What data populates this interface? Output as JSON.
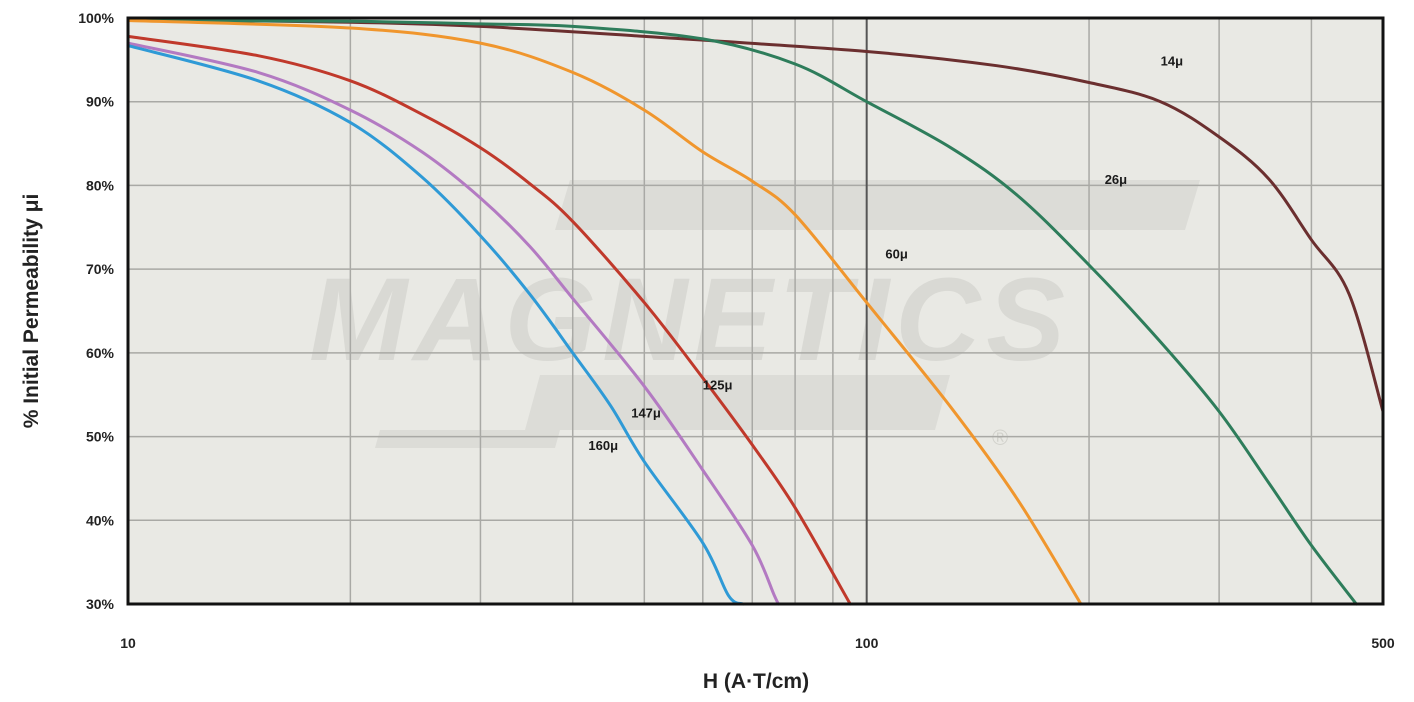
{
  "watermark": {
    "text": "MAGNETICS",
    "registered_mark": "®"
  },
  "chart_data": {
    "type": "line",
    "title": "",
    "xlabel": "H (A·T/cm)",
    "ylabel": "% Initial Permeability μi",
    "xscale": "log",
    "xlim": [
      10,
      500
    ],
    "ylim": [
      30,
      100
    ],
    "x_tick_labels": [
      {
        "value": 10,
        "label": "10"
      },
      {
        "value": 100,
        "label": "100"
      },
      {
        "value": 500,
        "label": "500"
      }
    ],
    "x_gridlines": [
      20,
      30,
      40,
      50,
      60,
      70,
      80,
      90,
      100,
      200,
      300,
      400
    ],
    "y_ticks": [
      {
        "value": 30,
        "label": "30%"
      },
      {
        "value": 40,
        "label": "40%"
      },
      {
        "value": 50,
        "label": "50%"
      },
      {
        "value": 60,
        "label": "60%"
      },
      {
        "value": 70,
        "label": "70%"
      },
      {
        "value": 80,
        "label": "80%"
      },
      {
        "value": 90,
        "label": "90%"
      },
      {
        "value": 100,
        "label": "100%"
      }
    ],
    "grid": true,
    "plot_background": "#e9e9e4",
    "series": [
      {
        "name": "14μ",
        "color": "#6b2f2f",
        "label_at": [
          250,
          94.3
        ],
        "points": [
          [
            10,
            99.8
          ],
          [
            20,
            99.5
          ],
          [
            30,
            99
          ],
          [
            50,
            97.8
          ],
          [
            100,
            96
          ],
          [
            150,
            94.3
          ],
          [
            200,
            92.3
          ],
          [
            250,
            90
          ],
          [
            300,
            85.8
          ],
          [
            350,
            80.8
          ],
          [
            400,
            73.5
          ],
          [
            450,
            67
          ],
          [
            500,
            53
          ]
        ]
      },
      {
        "name": "26μ",
        "color": "#2e7d5b",
        "label_at": [
          210,
          80.2
        ],
        "points": [
          [
            10,
            99.7
          ],
          [
            20,
            99.6
          ],
          [
            30,
            99.3
          ],
          [
            40,
            99
          ],
          [
            60,
            97.5
          ],
          [
            80,
            94.5
          ],
          [
            100,
            90
          ],
          [
            130,
            84.5
          ],
          [
            160,
            78.8
          ],
          [
            200,
            70.5
          ],
          [
            250,
            61.3
          ],
          [
            300,
            53
          ],
          [
            350,
            44.5
          ],
          [
            400,
            37
          ],
          [
            460,
            30
          ]
        ]
      },
      {
        "name": "60μ",
        "color": "#f0962d",
        "label_at": [
          106,
          71.3
        ],
        "points": [
          [
            10,
            99.7
          ],
          [
            20,
            98.8
          ],
          [
            30,
            97
          ],
          [
            40,
            93.5
          ],
          [
            50,
            89
          ],
          [
            60,
            84
          ],
          [
            70,
            80.5
          ],
          [
            80,
            76.5
          ],
          [
            100,
            66
          ],
          [
            130,
            53.5
          ],
          [
            160,
            42.5
          ],
          [
            195,
            30
          ]
        ]
      },
      {
        "name": "125μ",
        "color": "#c0392b",
        "label_at": [
          60,
          55.6
        ],
        "points": [
          [
            10,
            97.8
          ],
          [
            15,
            95.5
          ],
          [
            20,
            92.5
          ],
          [
            25,
            88.5
          ],
          [
            30,
            84.5
          ],
          [
            35,
            80.2
          ],
          [
            40,
            75.7
          ],
          [
            50,
            66
          ],
          [
            60,
            57
          ],
          [
            70,
            49
          ],
          [
            80,
            41.5
          ],
          [
            95,
            30
          ]
        ]
      },
      {
        "name": "147μ",
        "color": "#b37ac2",
        "label_at": [
          48,
          52.3
        ],
        "points": [
          [
            10,
            97
          ],
          [
            15,
            93.5
          ],
          [
            20,
            89
          ],
          [
            25,
            84
          ],
          [
            30,
            78.5
          ],
          [
            35,
            72.7
          ],
          [
            40,
            66.5
          ],
          [
            50,
            56
          ],
          [
            60,
            46
          ],
          [
            70,
            37
          ],
          [
            75,
            31
          ],
          [
            76,
            30
          ]
        ]
      },
      {
        "name": "160μ",
        "color": "#2f9ad6",
        "label_at": [
          42,
          48.4
        ],
        "points": [
          [
            10,
            96.7
          ],
          [
            15,
            92.5
          ],
          [
            20,
            87.5
          ],
          [
            25,
            81
          ],
          [
            30,
            74
          ],
          [
            35,
            67
          ],
          [
            40,
            60
          ],
          [
            45,
            53.7
          ],
          [
            50,
            47
          ],
          [
            60,
            37.3
          ],
          [
            65,
            31
          ],
          [
            68,
            30
          ]
        ]
      }
    ]
  }
}
